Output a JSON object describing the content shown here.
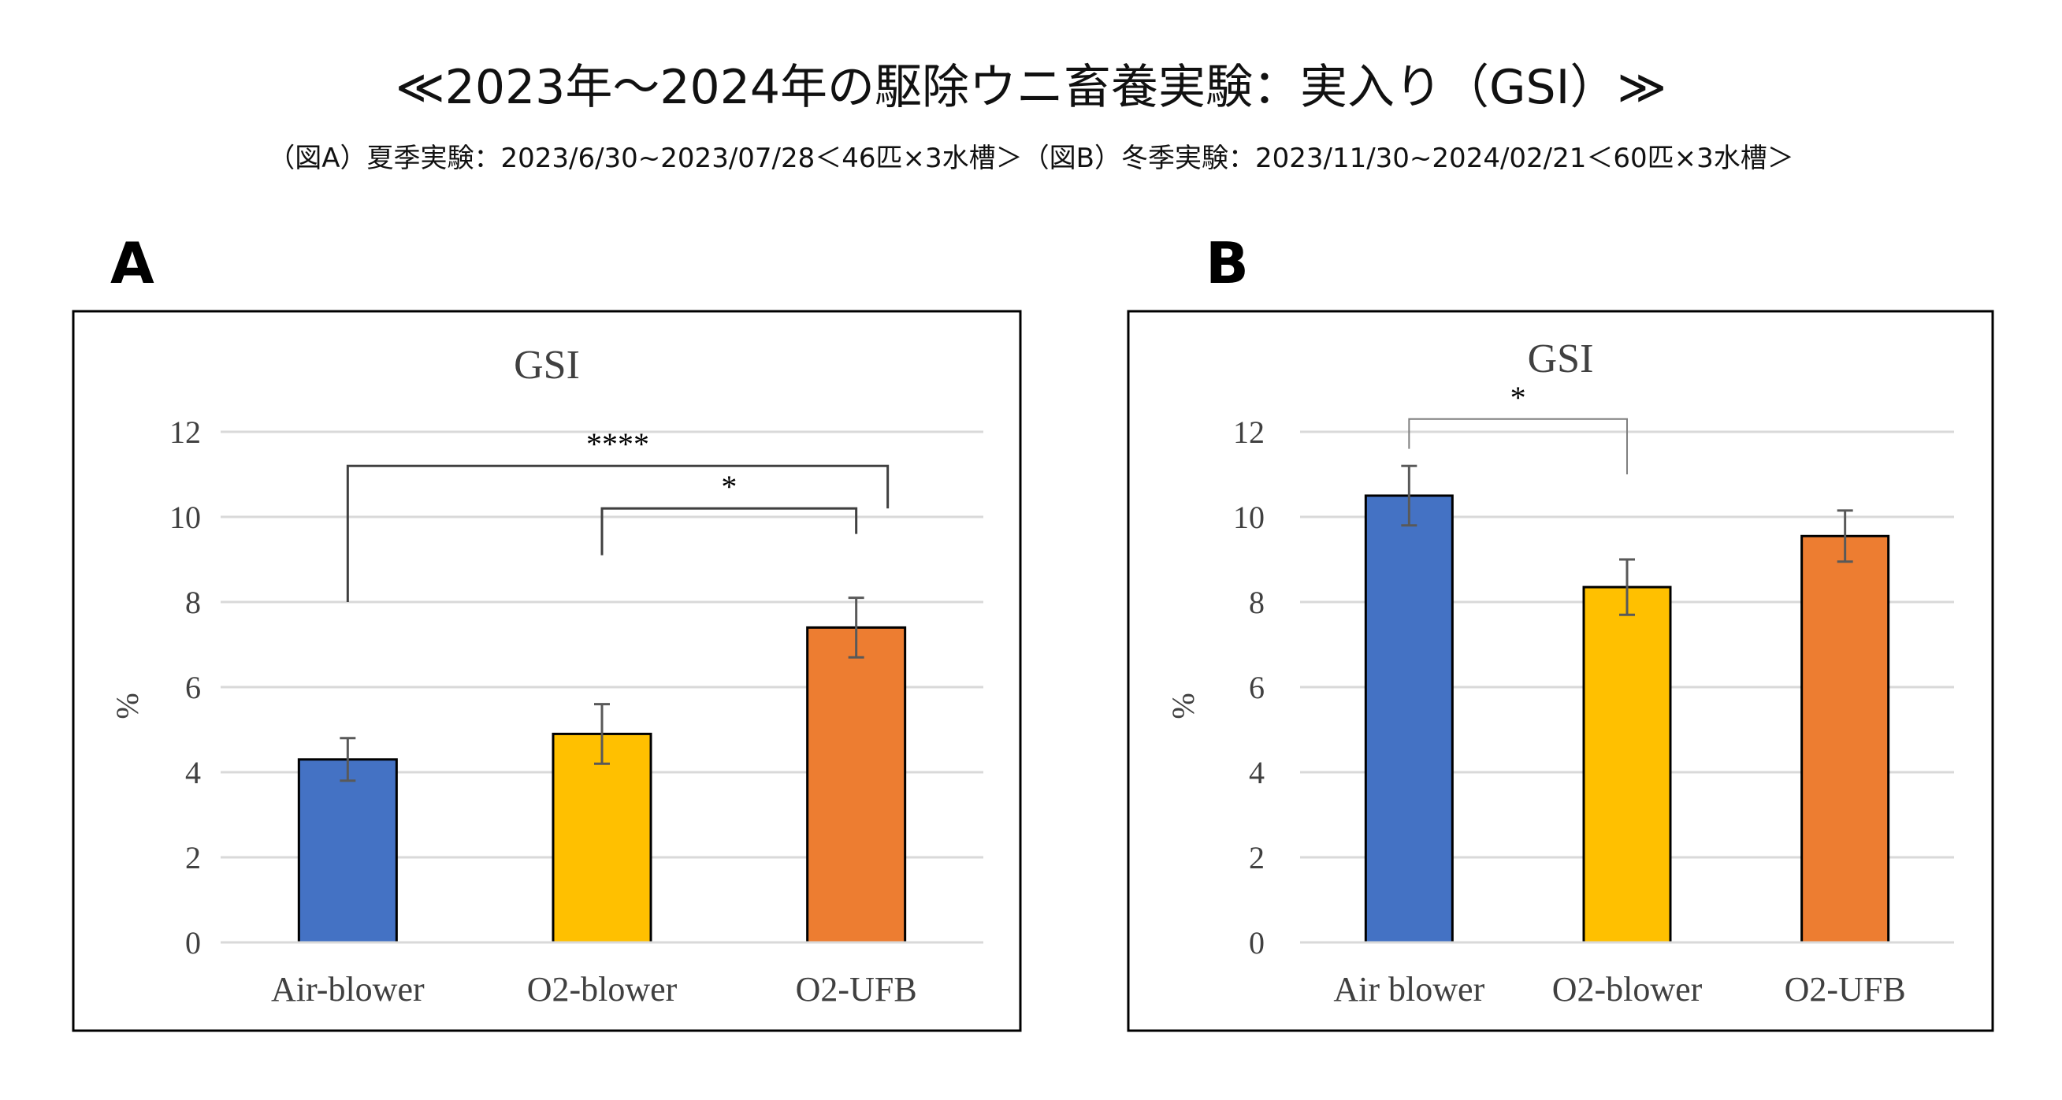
{
  "header": {
    "title": "≪2023年～2024年の駆除ウニ畜養実験：実入り（GSI）≫",
    "subtitle": "（図A）夏季実験：2023/6/30~2023/07/28＜46匹×3水槽＞（図B）冬季実験：2023/11/30~2024/02/21＜60匹×3水槽＞"
  },
  "panels": {
    "a_letter": "A",
    "b_letter": "B"
  },
  "colors": {
    "blue": "#4472C4",
    "yellow": "#FFC000",
    "orange": "#ED7D31",
    "grid": "#D9D9D9",
    "axis_text": "#404040"
  },
  "chart_data": [
    {
      "type": "bar",
      "panel": "A",
      "title": "GSI",
      "ylabel": "%",
      "ylim": [
        0,
        12
      ],
      "yticks": [
        "0",
        "2",
        "4",
        "6",
        "8",
        "10",
        "12"
      ],
      "grid": true,
      "categories": [
        "Air-blower",
        "O2-blower",
        "O2-UFB"
      ],
      "values": [
        4.3,
        4.9,
        7.4
      ],
      "errors": [
        0.5,
        0.7,
        0.7
      ],
      "colors": [
        "#4472C4",
        "#FFC000",
        "#ED7D31"
      ],
      "significance": [
        {
          "from": 0,
          "to": 2,
          "label": "****",
          "level": 11.2
        },
        {
          "from": 1,
          "to": 2,
          "label": "*",
          "level": 10.2
        }
      ]
    },
    {
      "type": "bar",
      "panel": "B",
      "title": "GSI",
      "ylabel": "%",
      "ylim": [
        0,
        12
      ],
      "yticks": [
        "0",
        "2",
        "4",
        "6",
        "8",
        "10",
        "12"
      ],
      "grid": true,
      "categories": [
        "Air blower",
        "O2-blower",
        "O2-UFB"
      ],
      "values": [
        10.5,
        8.35,
        9.55
      ],
      "errors": [
        0.7,
        0.65,
        0.6
      ],
      "colors": [
        "#4472C4",
        "#FFC000",
        "#ED7D31"
      ],
      "significance": [
        {
          "from": 0,
          "to": 1,
          "label": "*",
          "level": 12.3
        }
      ]
    }
  ]
}
